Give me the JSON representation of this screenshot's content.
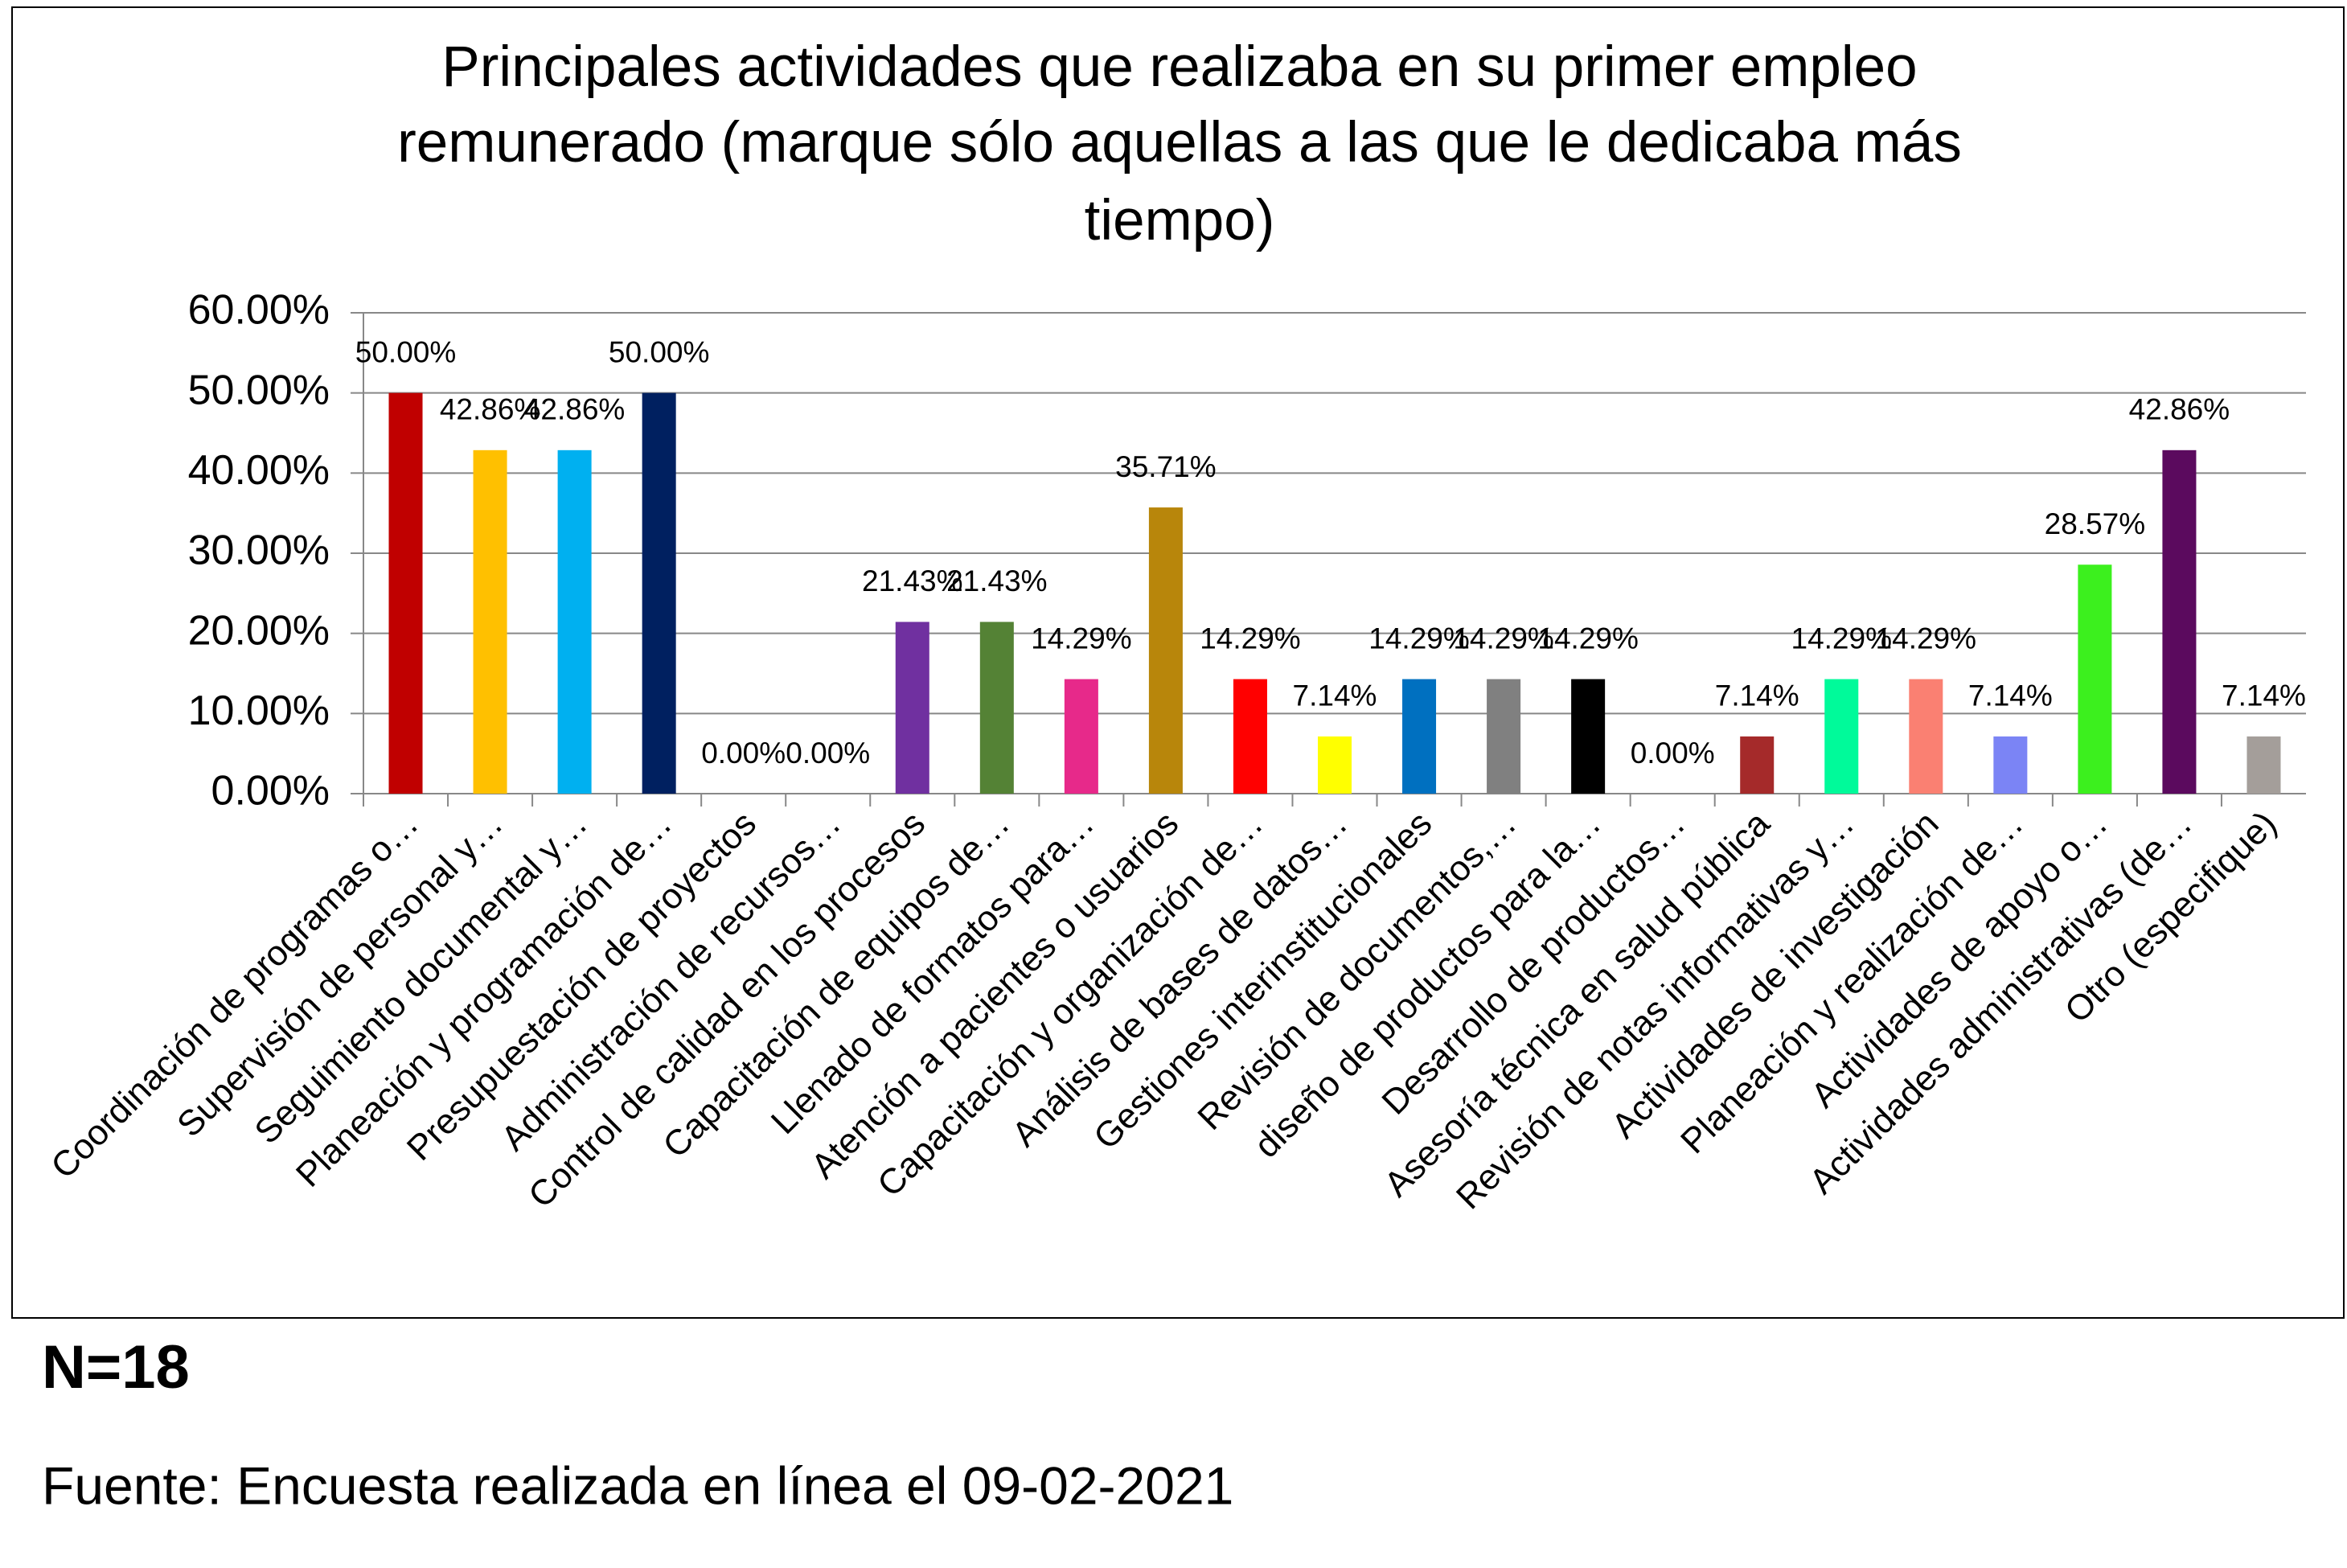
{
  "chart_data": {
    "type": "bar",
    "title": [
      "Principales actividades que realizaba en su primer empleo",
      "remunerado (marque sólo aquellas a las que le dedicaba más",
      "tiempo)"
    ],
    "categories": [
      "Coordinación de programas o…",
      "Supervisión de personal y…",
      "Seguimiento documental y…",
      "Planeación y programación de…",
      "Presupuestación de proyectos",
      "Administración de recursos…",
      "Control de calidad en los procesos",
      "Capacitación de equipos de…",
      "Llenado de formatos para…",
      "Atención a pacientes o usuarios",
      "Capacitación y organización de…",
      "Análisis de bases de datos…",
      "Gestiones interinstitucionales",
      "Revisión de documentos,…",
      "diseño de productos para la…",
      "Desarrollo de productos…",
      "Asesoría técnica en salud pública",
      "Revisión de notas informativas y…",
      "Actividades de investigación",
      "Planeación y realización de…",
      "Actividades de apoyo o…",
      "Actividades administrativas (de…",
      "Otro (especifique)"
    ],
    "values": [
      50,
      42.86,
      42.86,
      50,
      0,
      0,
      21.43,
      21.43,
      14.29,
      35.71,
      14.29,
      7.14,
      14.29,
      14.29,
      14.29,
      0,
      7.14,
      14.29,
      14.29,
      7.14,
      28.57,
      42.86,
      7.14
    ],
    "value_labels": [
      "50.00%",
      "42.86%",
      "42.86%",
      "50.00%",
      "0.00%",
      "0.00%",
      "21.43%",
      "21.43%",
      "14.29%",
      "35.71%",
      "14.29%",
      "7.14%",
      "14.29%",
      "14.29%",
      "14.29%",
      "0.00%",
      "7.14%",
      "14.29%",
      "14.29%",
      "7.14%",
      "28.57%",
      "42.86%",
      "7.14%"
    ],
    "colors": [
      "#c00000",
      "#ffc000",
      "#00b0f0",
      "#002060",
      "#7f7f7f",
      "#7f7f7f",
      "#7030a0",
      "#548235",
      "#e7298a",
      "#b8860b",
      "#ff0000",
      "#ffff00",
      "#0070c0",
      "#808080",
      "#000000",
      "#7f7f7f",
      "#a52a2a",
      "#00fa9a",
      "#fa8072",
      "#7b84f5",
      "#3cf01e",
      "#5b0a5e",
      "#a49e9a"
    ],
    "ylim": [
      0,
      60
    ],
    "yticks": [
      {
        "value": 0,
        "label": "0.00%"
      },
      {
        "value": 10,
        "label": "10.00%"
      },
      {
        "value": 20,
        "label": "20.00%"
      },
      {
        "value": 30,
        "label": "30.00%"
      },
      {
        "value": 40,
        "label": "40.00%"
      },
      {
        "value": 50,
        "label": "50.00%"
      },
      {
        "value": 60,
        "label": "60.00%"
      }
    ],
    "grid": true
  },
  "footer": {
    "sample": "N=18",
    "source": "Fuente: Encuesta realizada en línea el 09-02-2021"
  }
}
